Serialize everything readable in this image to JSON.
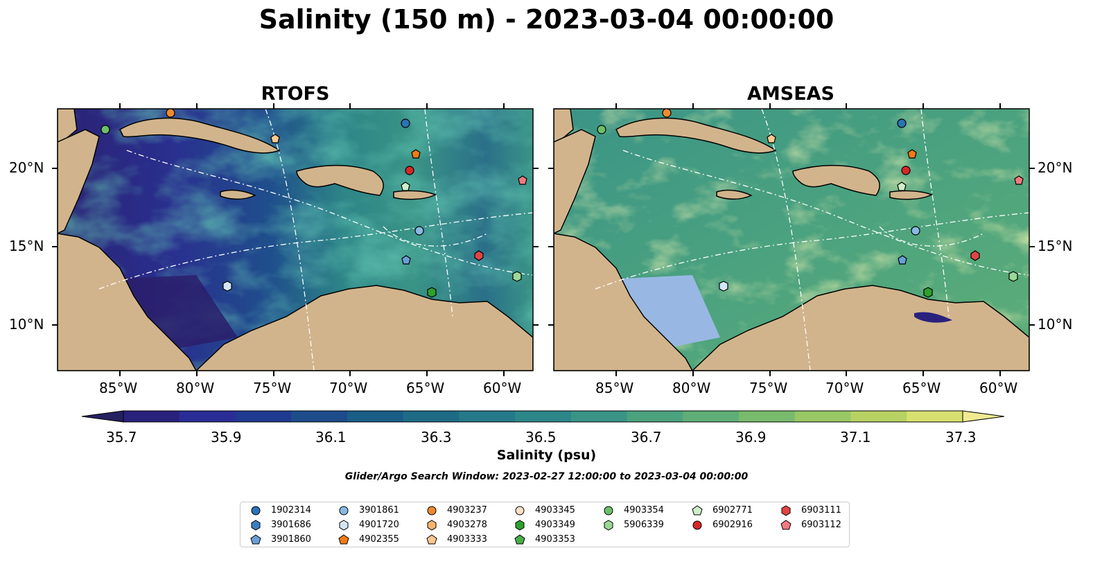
{
  "title": "Salinity (150 m) - 2023-03-04 00:00:00",
  "panels": [
    {
      "title": "RTOFS",
      "field_palette": "low-salinity (35.7–36.1 psu) west and south, 36.3–36.9 psu east"
    },
    {
      "title": "AMSEAS",
      "field_palette": "mostly 36.5–36.9 psu, local maxima 37.1–37.3 psu"
    }
  ],
  "lon_ticks": [
    "85°W",
    "80°W",
    "75°W",
    "70°W",
    "65°W",
    "60°W"
  ],
  "lat_ticks": [
    "20°N",
    "15°N",
    "10°N"
  ],
  "colorbar": {
    "label": "Salinity (psu)",
    "ticks": [
      "35.7",
      "35.9",
      "36.1",
      "36.3",
      "36.5",
      "36.7",
      "36.9",
      "37.1",
      "37.3"
    ],
    "colors": [
      "#25205f",
      "#29227d",
      "#2a2d95",
      "#1f3a8f",
      "#1d4c8a",
      "#1a5d87",
      "#1e6b86",
      "#257988",
      "#2d8688",
      "#3a9486",
      "#4ba27f",
      "#5fae77",
      "#79bb6c",
      "#98c764",
      "#b7d163",
      "#d8e16f",
      "#f1ea92"
    ],
    "extend": "both"
  },
  "search_window": "Glider/Argo Search Window: 2023-02-27 12:00:00 to 2023-03-04 00:00:00",
  "legend": [
    {
      "id": "1902314",
      "marker": "circle",
      "color": "#2b73b7"
    },
    {
      "id": "3901686",
      "marker": "hexagon",
      "color": "#3a7fc0"
    },
    {
      "id": "3901860",
      "marker": "pentagon",
      "color": "#6a9fd6"
    },
    {
      "id": "3901861",
      "marker": "circle",
      "color": "#88b9e3"
    },
    {
      "id": "4901720",
      "marker": "hexagon",
      "color": "#d4e6f5"
    },
    {
      "id": "4902355",
      "marker": "pentagon",
      "color": "#f07b16"
    },
    {
      "id": "4903237",
      "marker": "circle",
      "color": "#f08a2e"
    },
    {
      "id": "4903278",
      "marker": "hexagon",
      "color": "#f8b46b"
    },
    {
      "id": "4903333",
      "marker": "pentagon",
      "color": "#fbc890"
    },
    {
      "id": "4903345",
      "marker": "circle",
      "color": "#fde0c4"
    },
    {
      "id": "4903349",
      "marker": "hexagon",
      "color": "#2ea02c"
    },
    {
      "id": "4903353",
      "marker": "pentagon",
      "color": "#49ad48"
    },
    {
      "id": "4903354",
      "marker": "circle",
      "color": "#6cc06a"
    },
    {
      "id": "5906339",
      "marker": "hexagon",
      "color": "#9bd896"
    },
    {
      "id": "6902771",
      "marker": "pentagon",
      "color": "#cdeec7"
    },
    {
      "id": "6902916",
      "marker": "circle",
      "color": "#d62728"
    },
    {
      "id": "6903111",
      "marker": "hexagon",
      "color": "#e04545"
    },
    {
      "id": "6903112",
      "marker": "pentagon",
      "color": "#f07a80"
    }
  ],
  "colors": {
    "land": "#d2b48c",
    "shelf": "#98b8e3",
    "track": "#ffffff"
  }
}
